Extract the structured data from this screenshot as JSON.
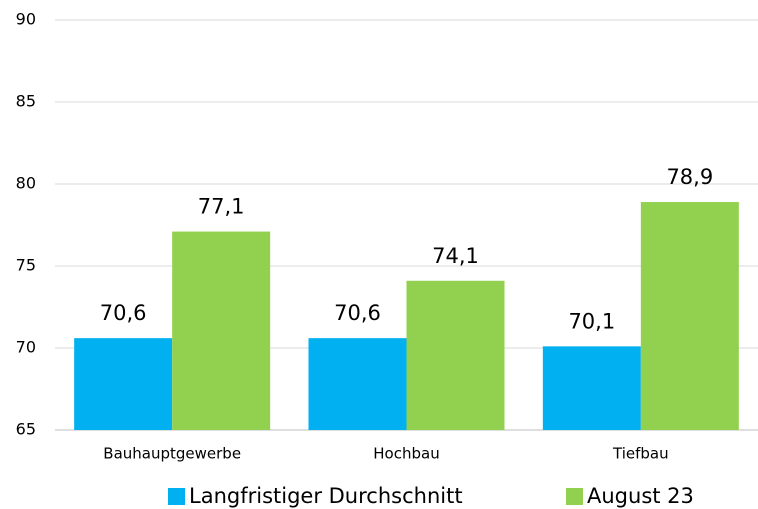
{
  "chart_data": {
    "type": "bar",
    "categories": [
      "Bauhauptgewerbe",
      "Hochbau",
      "Tiefbau"
    ],
    "series": [
      {
        "name": "Langfristiger Durchschnitt",
        "color": "#00b0f0",
        "values": [
          70.6,
          70.6,
          70.1
        ],
        "value_labels": [
          "70,6",
          "70,6",
          "70,1"
        ]
      },
      {
        "name": "August 23",
        "color": "#92d050",
        "values": [
          77.1,
          74.1,
          78.9
        ],
        "value_labels": [
          "77,1",
          "74,1",
          "78,9"
        ]
      }
    ],
    "ylim": [
      65,
      90
    ],
    "yticks": [
      65,
      70,
      75,
      80,
      85,
      90
    ],
    "grid": true,
    "legend": "bottom"
  }
}
